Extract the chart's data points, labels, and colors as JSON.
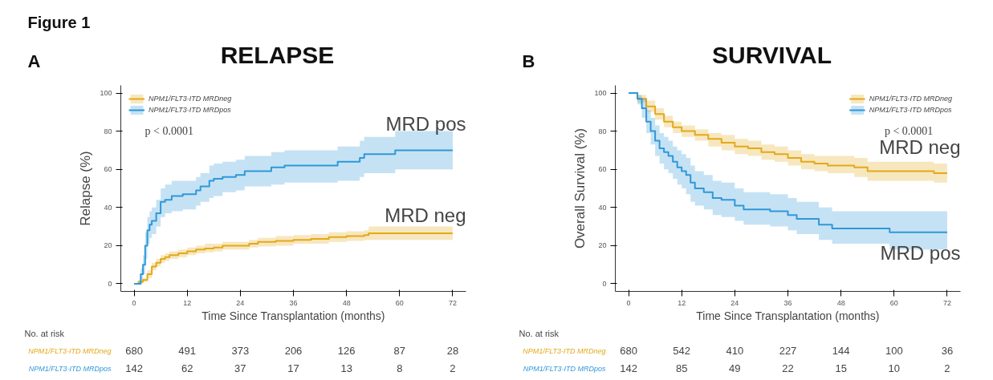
{
  "chart_data": [
    {
      "type": "step",
      "title": "RELAPSE",
      "xlabel": "Time Since Transplantation (months)",
      "ylabel": "Relapse (%)",
      "xlim": [
        -3,
        75
      ],
      "xticks": [
        0,
        12,
        24,
        36,
        48,
        60,
        72
      ],
      "ylim": [
        -4,
        104
      ],
      "yticks": [
        0,
        20,
        40,
        60,
        80,
        100
      ],
      "grid": false,
      "legend": "top left",
      "series": [
        {
          "name": "NPM1/FLT3-ITD MRDneg",
          "color": "#e3a918",
          "x": [
            0,
            1,
            2,
            3,
            4,
            5,
            6,
            7,
            8,
            10,
            12,
            14,
            16,
            18,
            20,
            24,
            26,
            28,
            32,
            36,
            40,
            44,
            48,
            52,
            53,
            72
          ],
          "values": [
            0,
            1,
            2,
            5,
            9,
            11,
            13,
            14,
            15,
            16,
            17,
            18,
            18.5,
            19,
            20,
            20,
            21,
            22,
            22.5,
            23,
            23.5,
            24.5,
            25,
            25.5,
            26.5,
            26.5
          ],
          "lower": [
            0,
            0,
            1,
            3,
            7,
            9,
            11,
            12,
            13,
            14,
            15,
            16,
            16.5,
            17,
            18,
            18,
            19,
            19.5,
            20,
            21,
            21,
            22,
            22.5,
            23,
            23,
            23
          ],
          "upper": [
            0,
            2,
            3,
            7,
            11,
            13,
            15,
            16,
            17,
            18,
            19,
            20,
            21,
            21,
            22,
            22,
            23,
            24,
            25,
            25.5,
            26,
            27,
            27.5,
            28,
            30,
            30
          ]
        },
        {
          "name": "NPM1/FLT3-ITD MRDpos",
          "color": "#2f98d8",
          "x": [
            0,
            1,
            1.5,
            2,
            2.5,
            3,
            3.5,
            4,
            5,
            6,
            7,
            8.5,
            11,
            14,
            15,
            17,
            18,
            20,
            23,
            25,
            31,
            34,
            46,
            51,
            52,
            59,
            72
          ],
          "values": [
            0,
            0,
            5,
            10,
            20,
            28,
            31,
            33,
            37,
            43,
            44,
            46,
            47,
            49,
            51,
            54,
            55,
            56,
            57,
            59,
            61,
            62,
            64,
            66,
            68,
            70,
            70
          ],
          "lower": [
            0,
            0,
            2,
            5,
            13,
            21,
            24,
            26,
            30,
            35,
            37,
            38,
            39,
            41,
            43,
            45,
            46,
            48,
            49,
            51,
            52,
            53,
            54,
            56,
            58,
            60,
            60
          ],
          "upper": [
            0,
            0,
            8,
            15,
            27,
            35,
            38,
            40,
            44,
            50,
            52,
            54,
            54,
            56,
            58,
            62,
            63,
            64,
            65,
            67,
            69,
            70,
            72,
            75,
            77,
            80,
            80
          ]
        }
      ],
      "annotations": [
        "Figure 1",
        "A",
        "p < 0.0001",
        "MRD pos",
        "MRD neg",
        "No. at risk",
        "NPM1/FLT3-ITD MRDneg",
        "680",
        "491",
        "373",
        "206",
        "126",
        "87",
        "28",
        "NPM1/FLT3-ITD MRDpos",
        "142",
        "62",
        "37",
        "17",
        "13",
        "8",
        "2"
      ]
    },
    {
      "type": "step",
      "title": "SURVIVAL",
      "xlabel": "Time Since Transplantation (months)",
      "ylabel": "Overall Survival (%)",
      "xlim": [
        -3,
        75
      ],
      "xticks": [
        0,
        12,
        24,
        36,
        48,
        60,
        72
      ],
      "ylim": [
        -4,
        104
      ],
      "yticks": [
        0,
        20,
        40,
        60,
        80,
        100
      ],
      "grid": false,
      "legend": "top right",
      "series": [
        {
          "name": "NPM1/FLT3-ITD MRDneg",
          "color": "#e3a918",
          "x": [
            0,
            2,
            4,
            6,
            8,
            10,
            12,
            15,
            18,
            21,
            24,
            27,
            30,
            33,
            36,
            39,
            42,
            45,
            48,
            51,
            54,
            60,
            68,
            69,
            72
          ],
          "values": [
            100,
            97,
            93,
            89,
            85,
            82,
            80,
            78,
            76,
            74,
            72,
            71,
            69,
            68,
            66,
            64,
            63,
            62,
            62,
            61,
            59,
            59,
            59,
            58,
            58
          ],
          "lower": [
            100,
            95,
            90,
            86,
            82,
            79,
            77,
            75,
            72,
            70,
            68,
            67,
            65,
            64,
            62,
            60,
            59,
            58,
            58,
            56,
            54,
            54,
            54,
            53,
            53
          ],
          "upper": [
            100,
            99,
            96,
            92,
            88,
            85,
            83,
            81,
            79,
            78,
            76,
            75,
            73,
            72,
            70,
            68,
            67,
            67,
            67,
            66,
            64,
            64,
            64,
            63,
            63
          ]
        },
        {
          "name": "NPM1/FLT3-ITD MRDpos",
          "color": "#2f98d8",
          "x": [
            0,
            2,
            3,
            4,
            5,
            6,
            7,
            8,
            9,
            10,
            11,
            12,
            13,
            14,
            15,
            17,
            19,
            21,
            24,
            26,
            32,
            36,
            38,
            43,
            46,
            59,
            72
          ],
          "values": [
            100,
            97,
            92,
            85,
            80,
            75,
            71,
            69,
            67,
            64,
            61,
            59,
            57,
            53,
            50,
            48,
            45,
            44,
            41,
            39,
            38,
            36,
            34,
            31,
            29,
            27,
            27
          ],
          "lower": [
            100,
            94,
            87,
            79,
            73,
            67,
            63,
            60,
            58,
            55,
            52,
            50,
            47,
            43,
            41,
            39,
            36,
            35,
            33,
            31,
            30,
            28,
            26,
            23,
            21,
            18,
            18
          ],
          "upper": [
            100,
            99,
            97,
            91,
            87,
            83,
            79,
            77,
            75,
            72,
            70,
            68,
            66,
            62,
            59,
            57,
            54,
            53,
            50,
            48,
            47,
            45,
            43,
            40,
            38,
            38,
            38
          ]
        }
      ],
      "annotations": [
        "B",
        "p < 0.0001",
        "MRD neg",
        "MRD pos",
        "No. at risk",
        "NPM1/FLT3-ITD MRDneg",
        "680",
        "542",
        "410",
        "227",
        "144",
        "100",
        "36",
        "NPM1/FLT3-ITD MRDpos",
        "142",
        "85",
        "49",
        "22",
        "15",
        "10",
        "2"
      ]
    }
  ]
}
